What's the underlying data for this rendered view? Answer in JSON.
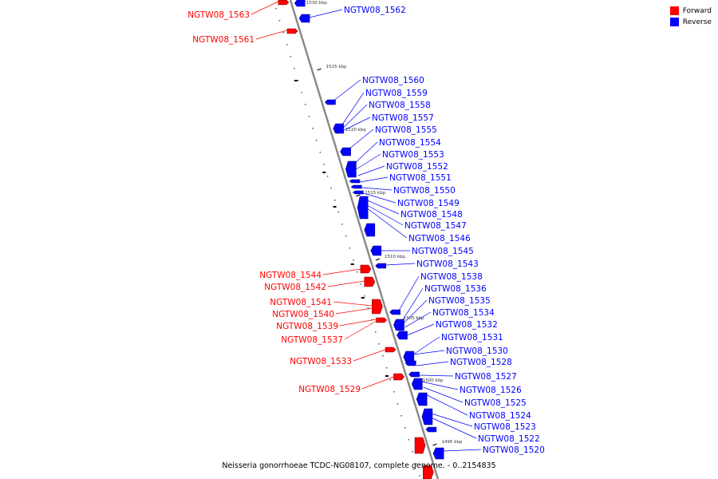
{
  "legend": {
    "forward_label": "Forward",
    "reverse_label": "Reverse",
    "forward_color": "#ff0000",
    "reverse_color": "#0000ff"
  },
  "caption": "Neisseria gonorrhoeae TCDC-NG08107, complete genome. - 0..2154835",
  "ticks": [
    "1530 kbp",
    "1525 kbp",
    "1520 kbp",
    "1515 kbp",
    "1510 kbp",
    "1505 kbp",
    "1500 kbp",
    "1495 kbp"
  ],
  "genes_reverse": [
    "NGTW08_1562",
    "NGTW08_1560",
    "NGTW08_1559",
    "NGTW08_1558",
    "NGTW08_1557",
    "NGTW08_1555",
    "NGTW08_1554",
    "NGTW08_1553",
    "NGTW08_1552",
    "NGTW08_1551",
    "NGTW08_1550",
    "NGTW08_1549",
    "NGTW08_1548",
    "NGTW08_1547",
    "NGTW08_1546",
    "NGTW08_1545",
    "NGTW08_1543",
    "NGTW08_1538",
    "NGTW08_1536",
    "NGTW08_1535",
    "NGTW08_1534",
    "NGTW08_1532",
    "NGTW08_1531",
    "NGTW08_1530",
    "NGTW08_1528",
    "NGTW08_1527",
    "NGTW08_1526",
    "NGTW08_1525",
    "NGTW08_1524",
    "NGTW08_1523",
    "NGTW08_1522",
    "NGTW08_1520"
  ],
  "genes_forward": [
    "NGTW08_1563",
    "NGTW08_1561",
    "NGTW08_1544",
    "NGTW08_1542",
    "NGTW08_1541",
    "NGTW08_1540",
    "NGTW08_1539",
    "NGTW08_1537",
    "NGTW08_1533",
    "NGTW08_1529"
  ]
}
